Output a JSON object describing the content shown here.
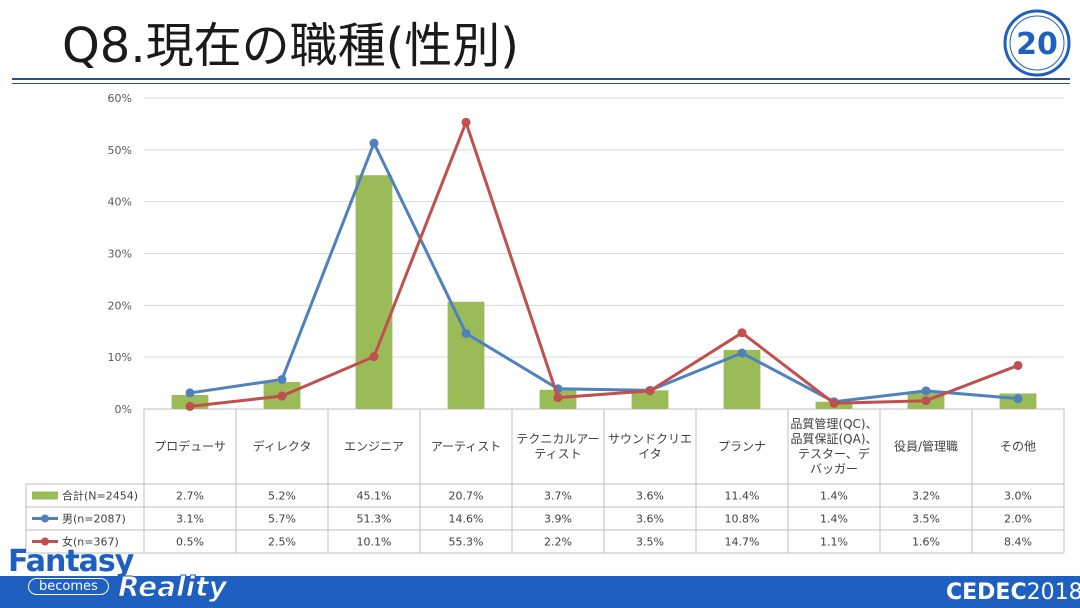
{
  "slide": {
    "title": "Q8.現在の職種(性別)"
  },
  "logos": {
    "anniversary_badge_text": "20",
    "brand_line1": "Fantasy",
    "brand_line2": "becomes",
    "brand_line3": "Reality",
    "footer_logo": "CEDEC",
    "footer_year": "2018"
  },
  "colors": {
    "total_bar": "#9bbb59",
    "male_line": "#4f81bd",
    "female_line": "#c0504d",
    "footer_blue": "#1f5fbf"
  },
  "chart_data": {
    "type": "bar",
    "ylim": [
      0,
      60
    ],
    "yticks": [
      "0%",
      "10%",
      "20%",
      "30%",
      "40%",
      "50%",
      "60%"
    ],
    "ytick_values": [
      0,
      10,
      20,
      30,
      40,
      50,
      60
    ],
    "grid": true,
    "categories": [
      [
        "プロデューサ"
      ],
      [
        "ディレクタ"
      ],
      [
        "エンジニア"
      ],
      [
        "アーティスト"
      ],
      [
        "テクニカルアー",
        "ティスト"
      ],
      [
        "サウンドクリエ",
        "イタ"
      ],
      [
        "プランナ"
      ],
      [
        "品質管理(QC)、",
        "品質保証(QA)、",
        "テスター、デ",
        "バッガー"
      ],
      [
        "役員/管理職"
      ],
      [
        "その他"
      ]
    ],
    "series": [
      {
        "name": "合計(N=2454)",
        "kind": "bar",
        "values": [
          2.7,
          5.2,
          45.1,
          20.7,
          3.7,
          3.6,
          11.4,
          1.4,
          3.2,
          3.0
        ],
        "labels": [
          "2.7%",
          "5.2%",
          "45.1%",
          "20.7%",
          "3.7%",
          "3.6%",
          "11.4%",
          "1.4%",
          "3.2%",
          "3.0%"
        ]
      },
      {
        "name": "男(n=2087)",
        "kind": "line",
        "values": [
          3.1,
          5.7,
          51.3,
          14.6,
          3.9,
          3.6,
          10.8,
          1.4,
          3.5,
          2.0
        ],
        "labels": [
          "3.1%",
          "5.7%",
          "51.3%",
          "14.6%",
          "3.9%",
          "3.6%",
          "10.8%",
          "1.4%",
          "3.5%",
          "2.0%"
        ]
      },
      {
        "name": "女(n=367)",
        "kind": "line",
        "values": [
          0.5,
          2.5,
          10.1,
          55.3,
          2.2,
          3.5,
          14.7,
          1.1,
          1.6,
          8.4
        ],
        "labels": [
          "0.5%",
          "2.5%",
          "10.1%",
          "55.3%",
          "2.2%",
          "3.5%",
          "14.7%",
          "1.1%",
          "1.6%",
          "8.4%"
        ]
      }
    ]
  }
}
